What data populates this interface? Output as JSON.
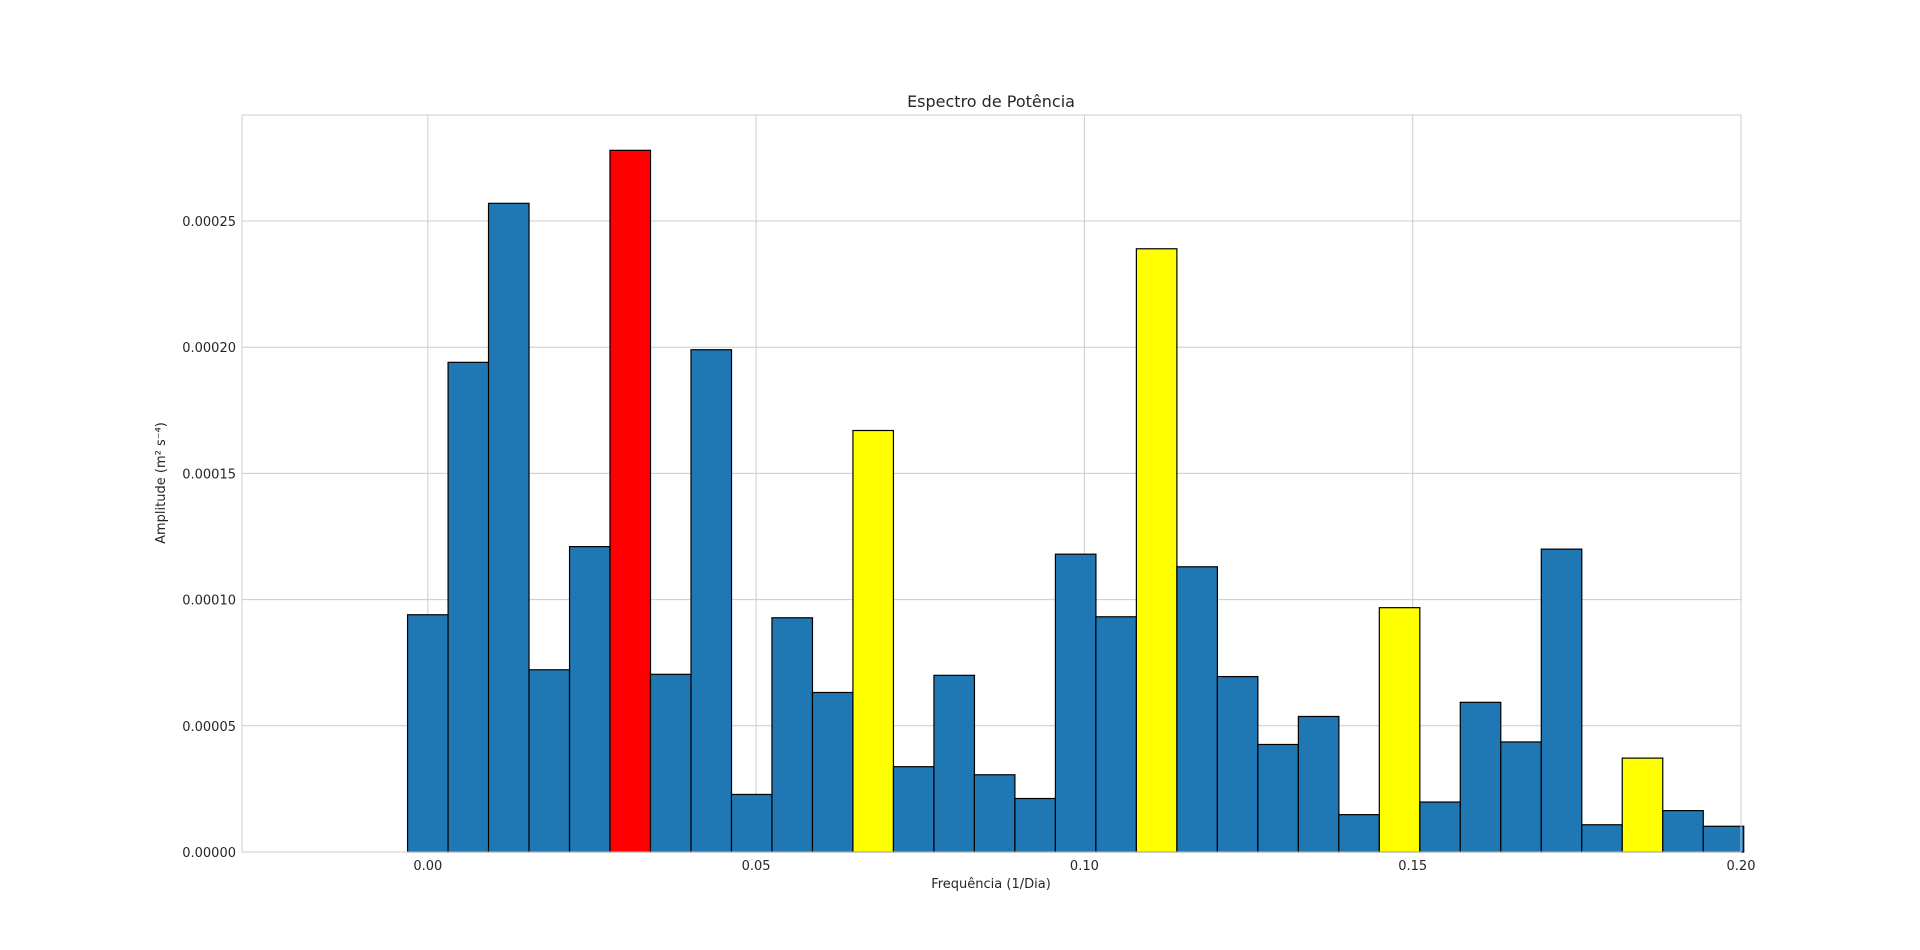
{
  "chart_data": {
    "type": "bar",
    "title": "Espectro de Potência",
    "xlabel": "Frequência (1/Dia)",
    "ylabel": "Amplitude (m² s⁻⁴)",
    "xlim": [
      -0.0283,
      0.2
    ],
    "ylim": [
      0,
      0.000292
    ],
    "grid": true,
    "bar_width": 0.00617,
    "x_ticks": [
      {
        "value": 0.0,
        "label": "0.00"
      },
      {
        "value": 0.05,
        "label": "0.05"
      },
      {
        "value": 0.1,
        "label": "0.10"
      },
      {
        "value": 0.15,
        "label": "0.15"
      },
      {
        "value": 0.2,
        "label": "0.20"
      }
    ],
    "y_ticks": [
      {
        "value": 0.0,
        "label": "0.00000"
      },
      {
        "value": 5e-05,
        "label": "0.00005"
      },
      {
        "value": 0.0001,
        "label": "0.00010"
      },
      {
        "value": 0.00015,
        "label": "0.00015"
      },
      {
        "value": 0.0002,
        "label": "0.00020"
      },
      {
        "value": 0.00025,
        "label": "0.00025"
      }
    ],
    "colors": {
      "default": "#1f77b4",
      "red": "#ff0000",
      "yellow": "#ffff00"
    },
    "x": [
      0.0,
      0.00617,
      0.01233,
      0.0185,
      0.02467,
      0.03083,
      0.037,
      0.04317,
      0.04933,
      0.0555,
      0.06167,
      0.06783,
      0.074,
      0.08017,
      0.08633,
      0.0925,
      0.09867,
      0.10483,
      0.111,
      0.11717,
      0.12333,
      0.1295,
      0.13567,
      0.14183,
      0.148,
      0.15417,
      0.16033,
      0.1665,
      0.17267,
      0.17883,
      0.185,
      0.19117,
      0.19733
    ],
    "values": [
      9.4e-05,
      0.000194,
      0.000257,
      7.22e-05,
      0.000121,
      0.000278,
      7.04e-05,
      0.000199,
      2.28e-05,
      9.28e-05,
      6.32e-05,
      0.000167,
      3.38e-05,
      7e-05,
      3.06e-05,
      2.12e-05,
      0.000118,
      9.32e-05,
      0.000239,
      0.000113,
      6.95e-05,
      4.26e-05,
      5.37e-05,
      1.48e-05,
      9.68e-05,
      1.98e-05,
      5.93e-05,
      4.36e-05,
      0.00012,
      1.08e-05,
      3.72e-05,
      1.64e-05,
      1.02e-05
    ],
    "bar_colors": [
      "default",
      "default",
      "default",
      "default",
      "default",
      "red",
      "default",
      "default",
      "default",
      "default",
      "default",
      "yellow",
      "default",
      "default",
      "default",
      "default",
      "default",
      "default",
      "yellow",
      "default",
      "default",
      "default",
      "default",
      "default",
      "yellow",
      "default",
      "default",
      "default",
      "default",
      "default",
      "yellow",
      "default",
      "default"
    ]
  }
}
